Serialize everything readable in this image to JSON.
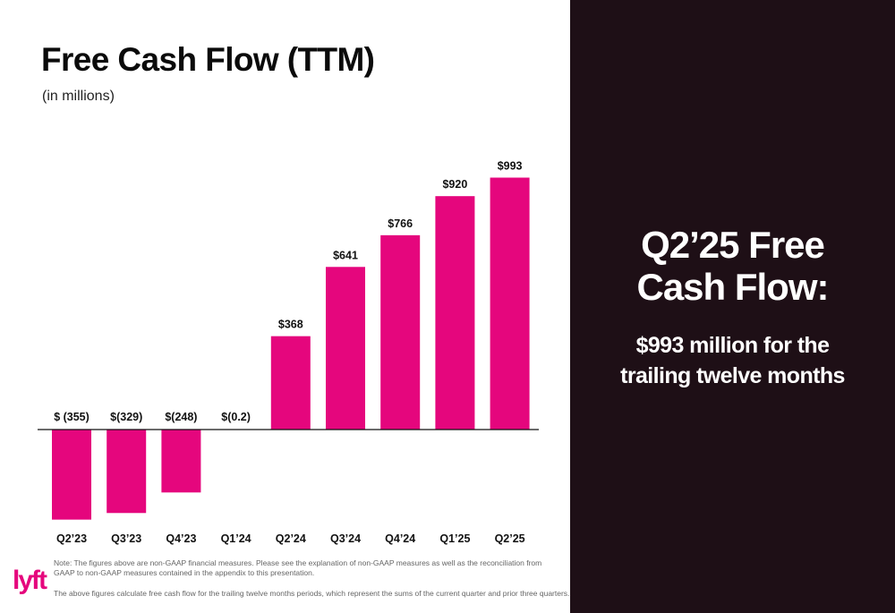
{
  "chart_data": {
    "type": "bar",
    "title": "Free Cash Flow (TTM)",
    "subtitle": "(in millions)",
    "categories": [
      "Q2’23",
      "Q3’23",
      "Q4’23",
      "Q1’24",
      "Q2’24",
      "Q3’24",
      "Q4’24",
      "Q1’25",
      "Q2’25"
    ],
    "values": [
      -355,
      -329,
      -248,
      -0.2,
      368,
      641,
      766,
      920,
      993
    ],
    "value_labels": [
      "$ (355)",
      "$(329)",
      "$(248)",
      "$(0.2)",
      "$368",
      "$641",
      "$766",
      "$920",
      "$993"
    ],
    "ylim": [
      -355,
      993
    ],
    "grid": false,
    "bar_color": "#e5067d"
  },
  "notes": {
    "note1": "Note: The figures above are non-GAAP financial measures. Please see the explanation of non-GAAP measures as well as the reconciliation from GAAP to non-GAAP measures contained in the appendix to this presentation.",
    "note2": "The above figures calculate free cash flow for the trailing twelve months periods, which represent the sums of the current quarter and prior three quarters."
  },
  "logo": {
    "text": "lyft",
    "color": "#e5067d"
  },
  "panel": {
    "background": "#1e0f16",
    "headline_line1": "Q2’25 Free",
    "headline_line2": "Cash Flow:",
    "sub_line1": "$993 million for the",
    "sub_line2": "trailing twelve months"
  }
}
